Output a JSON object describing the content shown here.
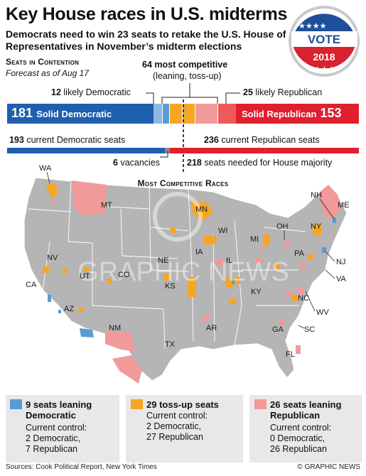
{
  "header": {
    "title": "Key House races in U.S. midterms",
    "subtitle": "Democrats need to win 23 seats to retake the U.S. House of Representatives in November’s midterm elections"
  },
  "badge": {
    "top": "VOTE",
    "year": "2018"
  },
  "contention": {
    "heading": "Seats in Contention",
    "forecast": "Forecast as of Aug 17",
    "competitive_num": "64",
    "competitive_label": "most competitive",
    "competitive_sub": "(leaning, toss-up)",
    "likely_dem_num": "12",
    "likely_dem_label": "likely Democratic",
    "likely_rep_num": "25",
    "likely_rep_label": "likely Republican",
    "solid_dem_num": "181",
    "solid_dem_label": "Solid Democratic",
    "solid_rep_num": "153",
    "solid_rep_label": "Solid Republican",
    "current_dem_num": "193",
    "current_dem_label": "current Democratic seats",
    "current_rep_num": "236",
    "current_rep_label": "current Republican seats",
    "vacancies_num": "6",
    "vacancies_label": "vacancies",
    "majority_num": "218",
    "majority_label": "seats needed for House majority"
  },
  "map": {
    "title": "Most Competitive Races",
    "watermark": "GRAPHIC NEWS",
    "states": [
      "WA",
      "MT",
      "MN",
      "NH",
      "ME",
      "WI",
      "MI",
      "NY",
      "OH",
      "NV",
      "NE",
      "IA",
      "PA",
      "NJ",
      "CA",
      "UT",
      "CO",
      "KS",
      "IL",
      "VA",
      "KY",
      "AZ",
      "NM",
      "NC",
      "WV",
      "TX",
      "AR",
      "SC",
      "GA",
      "FL"
    ]
  },
  "legend": [
    {
      "title": "9 seats leaning Democratic",
      "control_label": "Current control:",
      "control_a": "2 Democratic,",
      "control_b": "7 Republican",
      "color": "#5a9bd5"
    },
    {
      "title": "29 toss-up seats",
      "control_label": "Current control:",
      "control_a": "2 Democratic,",
      "control_b": "27 Republican",
      "color": "#f6a623"
    },
    {
      "title": "26 seats leaning Republican",
      "control_label": "Current control:",
      "control_a": "0 Democratic,",
      "control_b": "26 Republican",
      "color": "#f19a9a"
    }
  ],
  "footer": {
    "sources": "Sources: Cook Political Report, New York Times",
    "credit": "© GRAPHIC NEWS"
  },
  "colors": {
    "dem": "#1f5fad",
    "rep": "#e0202e",
    "lean_dem": "#5a9bd5",
    "tossup": "#f6a623",
    "lean_rep": "#f19a9a",
    "likely_dem": "#8db8e0",
    "likely_rep": "#ee5a5a",
    "map_grey": "#b5b5b5"
  }
}
